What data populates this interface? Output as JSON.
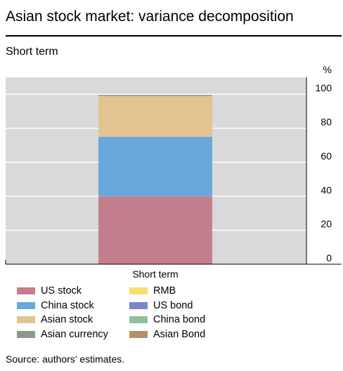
{
  "title": "Asian stock market: variance decomposition",
  "subtitle": "Short term",
  "source": "Source: authors’ estimates.",
  "colors": {
    "plot_background": "#d9d9d9",
    "gridline": "#ffffff",
    "axis": "#000000"
  },
  "chart_data": {
    "type": "bar",
    "stacked": true,
    "categories": [
      "Short term"
    ],
    "xlabel": "Short term",
    "ylabel": "",
    "y_unit": "%",
    "ylim": [
      0,
      110
    ],
    "yticks": [
      0,
      20,
      40,
      60,
      80,
      100
    ],
    "grid": true,
    "legend_position": "bottom",
    "series": [
      {
        "name": "US stock",
        "values": [
          40
        ],
        "color": "#c47f8e"
      },
      {
        "name": "China stock",
        "values": [
          35
        ],
        "color": "#6aa8dc"
      },
      {
        "name": "Asian stock",
        "values": [
          24
        ],
        "color": "#e2c493"
      },
      {
        "name": "Asian currency",
        "values": [
          0.6
        ],
        "color": "#8a9a8a"
      },
      {
        "name": "RMB",
        "values": [
          0
        ],
        "color": "#f7e06a"
      },
      {
        "name": "US bond",
        "values": [
          0
        ],
        "color": "#7b86c4"
      },
      {
        "name": "China bond",
        "values": [
          0
        ],
        "color": "#8fbf9c"
      },
      {
        "name": "Asian Bond",
        "values": [
          0
        ],
        "color": "#b98c6a"
      }
    ]
  }
}
